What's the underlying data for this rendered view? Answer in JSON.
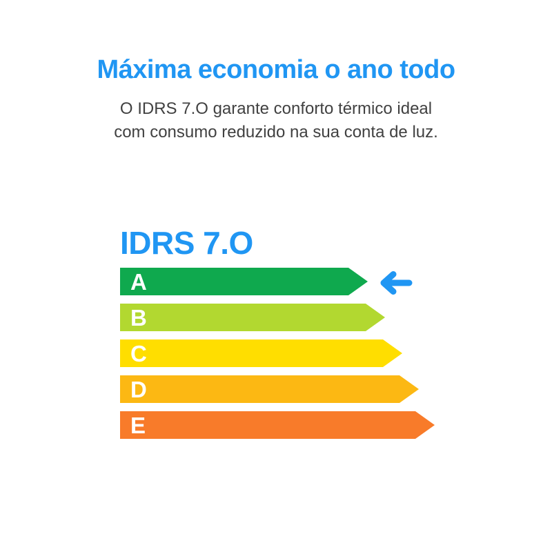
{
  "header": {
    "title": "Máxima economia o ano todo",
    "subtitle_lines": [
      "O IDRS 7.O garante conforto térmico ideal",
      "com consumo reduzido na sua conta de luz."
    ]
  },
  "chart_data": {
    "type": "bar",
    "title": "IDRS 7.O",
    "orientation": "horizontal",
    "categories": [
      "A",
      "B",
      "C",
      "D",
      "E"
    ],
    "values": [
      359,
      384,
      409,
      433,
      456
    ],
    "value_unit": "px (bar lengths as drawn; no numeric axis shown)",
    "bar_colors": [
      "#0fa94e",
      "#b2d830",
      "#ffde00",
      "#fcb813",
      "#f87b2a"
    ],
    "highlighted_category": "A",
    "annotation": "blue left-pointing arrow indicator next to rating A bar",
    "xlabel": "",
    "ylabel": "",
    "legend": "none",
    "grid": "off"
  },
  "colors": {
    "accent_blue": "#2096f3",
    "subtitle_text": "#414141",
    "bar_letter_white": "#ffffff",
    "background": "#ffffff"
  }
}
